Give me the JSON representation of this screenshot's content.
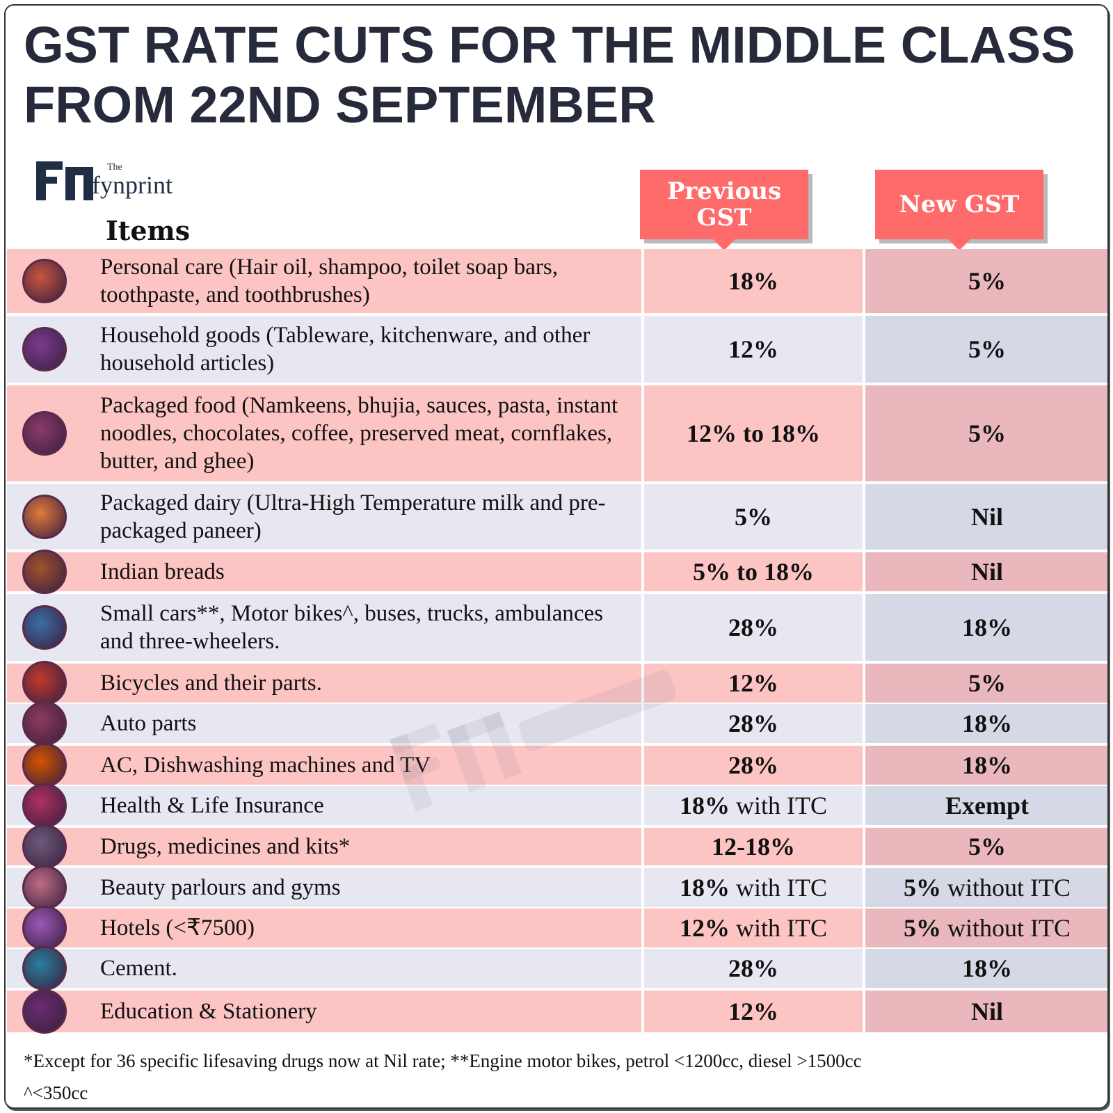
{
  "title": {
    "line1": "GST RATE CUTS FOR THE MIDDLE CLASS",
    "line2": "FROM 22ND SEPTEMBER"
  },
  "logo": {
    "the": "The",
    "name": "fynprint"
  },
  "headers": {
    "items": "Items",
    "previous": "Previous GST",
    "new": "New GST"
  },
  "colors": {
    "badge": "#ff6b6b",
    "pink_row": "#fdc4c4",
    "lavender_row": "#e6e7f1",
    "title": "#262a3b"
  },
  "rows": [
    {
      "icon": "personal-care-icon",
      "item": "Personal care (Hair oil, shampoo, toilet soap bars, toothpaste, and toothbrushes)",
      "prev_bold": "18%",
      "prev_rest": "",
      "new_bold": "5%",
      "new_rest": ""
    },
    {
      "icon": "household-goods-icon",
      "item": "Household goods (Tableware, kitchenware, and other household articles)",
      "prev_bold": "12%",
      "prev_rest": "",
      "new_bold": "5%",
      "new_rest": ""
    },
    {
      "icon": "packaged-food-icon",
      "item": "Packaged food (Namkeens, bhujia, sauces, pasta, instant noodles, chocolates, coffee, preserved meat, cornflakes, butter, and ghee)",
      "prev_bold": "12% to 18%",
      "prev_rest": "",
      "new_bold": "5%",
      "new_rest": ""
    },
    {
      "icon": "packaged-dairy-icon",
      "item": "Packaged dairy (Ultra-High Temperature milk and pre-packaged paneer)",
      "prev_bold": "5%",
      "prev_rest": "",
      "new_bold": "Nil",
      "new_rest": ""
    },
    {
      "icon": "indian-bread-icon",
      "item": "Indian breads",
      "prev_bold": "5% to 18%",
      "prev_rest": "",
      "new_bold": "Nil",
      "new_rest": ""
    },
    {
      "icon": "vehicles-icon",
      "item": "Small cars**, Motor bikes^, buses, trucks, ambulances and three-wheelers.",
      "prev_bold": "28%",
      "prev_rest": "",
      "new_bold": "18%",
      "new_rest": ""
    },
    {
      "icon": "bicycle-icon",
      "item": "Bicycles and their parts.",
      "prev_bold": "12%",
      "prev_rest": "",
      "new_bold": "5%",
      "new_rest": ""
    },
    {
      "icon": "auto-parts-icon",
      "item": "Auto parts",
      "prev_bold": "28%",
      "prev_rest": "",
      "new_bold": "18%",
      "new_rest": ""
    },
    {
      "icon": "appliances-icon",
      "item": "AC, Dishwashing machines and TV",
      "prev_bold": "28%",
      "prev_rest": "",
      "new_bold": "18%",
      "new_rest": ""
    },
    {
      "icon": "insurance-shield-icon",
      "item": "Health & Life Insurance",
      "prev_bold": "18%",
      "prev_rest": " with ITC",
      "new_bold": "Exempt",
      "new_rest": ""
    },
    {
      "icon": "medicine-icon",
      "item": "Drugs, medicines and kits*",
      "prev_bold": "12-18%",
      "prev_rest": "",
      "new_bold": "5%",
      "new_rest": ""
    },
    {
      "icon": "beauty-icon",
      "item": "Beauty parlours and gyms",
      "prev_bold": "18%",
      "prev_rest": " with ITC",
      "new_bold": "5%",
      "new_rest": " without ITC"
    },
    {
      "icon": "hotel-icon",
      "item": "Hotels (<₹7500)",
      "prev_bold": "12%",
      "prev_rest": " with ITC",
      "new_bold": "5%",
      "new_rest": " without ITC"
    },
    {
      "icon": "cement-mixer-icon",
      "item": "Cement.",
      "prev_bold": "28%",
      "prev_rest": "",
      "new_bold": "18%",
      "new_rest": ""
    },
    {
      "icon": "graduate-icon",
      "item": "Education & Stationery",
      "prev_bold": "12%",
      "prev_rest": "",
      "new_bold": "Nil",
      "new_rest": ""
    }
  ],
  "footnote": {
    "line1": "*Except for 36 specific lifesaving drugs now at Nil rate; **Engine motor bikes, petrol <1200cc, diesel >1500cc",
    "line2": "^<350cc"
  }
}
